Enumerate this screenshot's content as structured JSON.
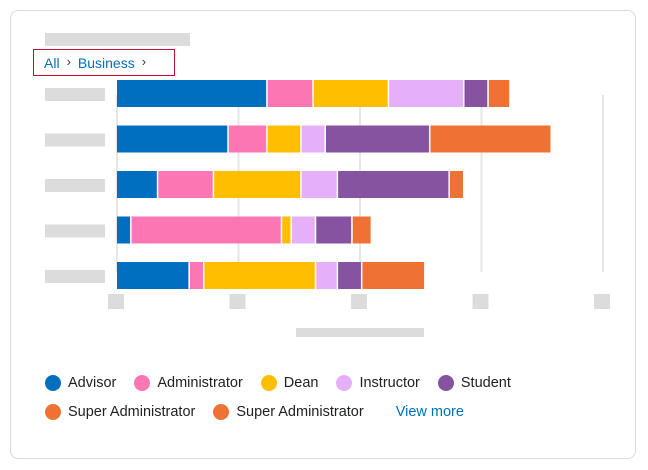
{
  "breadcrumb": {
    "items": [
      "All",
      "Business"
    ],
    "separator": "›"
  },
  "chart_data": {
    "type": "bar",
    "orientation": "horizontal",
    "stacked": true,
    "title": "",
    "xlabel": "",
    "ylabel": "",
    "categories": [
      "",
      "",
      "",
      "",
      ""
    ],
    "xlim": [
      0,
      100
    ],
    "grid": true,
    "legend_position": "bottom",
    "series": [
      {
        "name": "Advisor",
        "color": "#006fbf",
        "values": [
          31,
          23,
          8.5,
          3,
          15
        ]
      },
      {
        "name": "Administrator",
        "color": "#fc76b4",
        "values": [
          9.5,
          8,
          11.5,
          31,
          3
        ]
      },
      {
        "name": "Dean",
        "color": "#ffbf00",
        "values": [
          15.5,
          7,
          18,
          2,
          23
        ]
      },
      {
        "name": "Instructor",
        "color": "#e5b0f9",
        "values": [
          15.5,
          5,
          7.5,
          5,
          4.5
        ]
      },
      {
        "name": "Student",
        "color": "#8653a0",
        "values": [
          5,
          21.5,
          23,
          7.5,
          5
        ]
      },
      {
        "name": "Super Administrator",
        "color": "#ee7233",
        "values": [
          4.5,
          25,
          3,
          4,
          13
        ]
      }
    ]
  },
  "legend": {
    "items": [
      {
        "label": "Advisor",
        "color": "#006fbf"
      },
      {
        "label": "Administrator",
        "color": "#fc76b4"
      },
      {
        "label": "Dean",
        "color": "#ffbf00"
      },
      {
        "label": "Instructor",
        "color": "#e5b0f9"
      },
      {
        "label": "Student",
        "color": "#8653a0"
      },
      {
        "label": "Super Administrator",
        "color": "#ee7233"
      },
      {
        "label": "Super Administrator",
        "color": "#ee7233"
      }
    ],
    "view_more": "View more"
  }
}
